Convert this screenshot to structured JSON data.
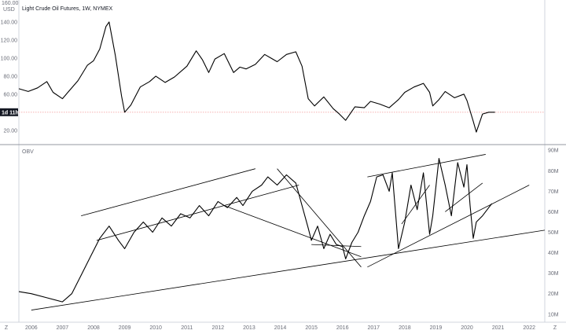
{
  "header": {
    "title": "Light Crude Oil Futures, 1W, NYMEX"
  },
  "price_axis": {
    "top_label": "160.00",
    "currency": "USD"
  },
  "price_tag": {
    "label": "1d 11h"
  },
  "obv_pane": {
    "label": "OBV"
  },
  "corner_icons": {
    "left": "Z",
    "right": "Z"
  },
  "colors": {
    "line": "#000000",
    "axis": "#7b7e8a",
    "ref_line": "#f4a6a6",
    "tag_bg": "#131722"
  },
  "chart_data": [
    {
      "type": "line",
      "title": "Light Crude Oil Futures, 1W, NYMEX",
      "ylim": [
        5,
        160
      ],
      "y_ticks": [
        20,
        40,
        60,
        80,
        100,
        120,
        140
      ],
      "y_tick_labels": [
        "20.00",
        "40.00",
        "60.00",
        "80.00",
        "100.00",
        "120.00",
        "140.00"
      ],
      "ref_line": 40,
      "x": [
        2005.6,
        2005.9,
        2006.2,
        2006.5,
        2006.7,
        2007.0,
        2007.2,
        2007.5,
        2007.8,
        2008.0,
        2008.2,
        2008.4,
        2008.5,
        2008.7,
        2008.9,
        2009.0,
        2009.2,
        2009.5,
        2009.8,
        2010.0,
        2010.3,
        2010.6,
        2010.9,
        2011.0,
        2011.3,
        2011.5,
        2011.7,
        2011.9,
        2012.2,
        2012.5,
        2012.7,
        2012.9,
        2013.2,
        2013.5,
        2013.7,
        2013.9,
        2014.2,
        2014.5,
        2014.7,
        2014.9,
        2015.1,
        2015.4,
        2015.7,
        2015.9,
        2016.1,
        2016.4,
        2016.7,
        2016.9,
        2017.2,
        2017.5,
        2017.8,
        2018.0,
        2018.3,
        2018.6,
        2018.8,
        2018.9,
        2019.1,
        2019.3,
        2019.6,
        2019.9,
        2020.0,
        2020.2,
        2020.3,
        2020.5,
        2020.7,
        2020.9
      ],
      "series": [
        {
          "values": [
            66,
            63,
            67,
            74,
            62,
            55,
            63,
            75,
            92,
            97,
            110,
            135,
            140,
            103,
            58,
            40,
            48,
            68,
            74,
            80,
            73,
            79,
            88,
            91,
            108,
            98,
            84,
            99,
            105,
            84,
            90,
            88,
            93,
            104,
            100,
            96,
            104,
            107,
            91,
            55,
            47,
            57,
            44,
            38,
            31,
            46,
            45,
            52,
            49,
            45,
            54,
            62,
            68,
            72,
            62,
            47,
            54,
            63,
            56,
            60,
            53,
            30,
            18,
            38,
            40,
            40
          ]
        }
      ]
    },
    {
      "type": "line",
      "title": "OBV",
      "ylim": [
        8,
        92
      ],
      "y_ticks": [
        10,
        20,
        30,
        40,
        50,
        60,
        70,
        80,
        90
      ],
      "y_tick_labels": [
        "10M",
        "20M",
        "30M",
        "40M",
        "50M",
        "60M",
        "70M",
        "80M",
        "90M"
      ],
      "x_ticks": [
        2006,
        2007,
        2008,
        2009,
        2010,
        2011,
        2012,
        2013,
        2014,
        2015,
        2016,
        2017,
        2018,
        2019,
        2020,
        2021,
        2022
      ],
      "x_tick_labels": [
        "2006",
        "2007",
        "2008",
        "2009",
        "2010",
        "2011",
        "2012",
        "2013",
        "2014",
        "2015",
        "2016",
        "2017",
        "2018",
        "2019",
        "2020",
        "2021",
        "2022"
      ],
      "x": [
        2005.6,
        2006.0,
        2006.5,
        2007.0,
        2007.3,
        2007.6,
        2007.9,
        2008.2,
        2008.5,
        2008.8,
        2009.0,
        2009.3,
        2009.6,
        2009.9,
        2010.2,
        2010.5,
        2010.8,
        2011.1,
        2011.4,
        2011.7,
        2012.0,
        2012.3,
        2012.6,
        2012.8,
        2013.1,
        2013.4,
        2013.6,
        2013.9,
        2014.2,
        2014.5,
        2014.7,
        2014.9,
        2015.0,
        2015.2,
        2015.4,
        2015.6,
        2015.8,
        2016.0,
        2016.1,
        2016.3,
        2016.5,
        2016.7,
        2016.9,
        2017.1,
        2017.3,
        2017.5,
        2017.6,
        2017.8,
        2018.0,
        2018.2,
        2018.4,
        2018.6,
        2018.8,
        2018.9,
        2019.1,
        2019.3,
        2019.5,
        2019.7,
        2019.9,
        2020.0,
        2020.1,
        2020.2,
        2020.3,
        2020.5,
        2020.7,
        2020.8
      ],
      "series": [
        {
          "values": [
            21,
            20,
            18,
            16,
            20,
            29,
            38,
            47,
            53,
            46,
            42,
            50,
            55,
            50,
            57,
            53,
            59,
            57,
            63,
            58,
            65,
            62,
            67,
            63,
            70,
            73,
            77,
            73,
            78,
            74,
            63,
            52,
            46,
            53,
            42,
            49,
            44,
            43,
            37,
            45,
            50,
            58,
            65,
            77,
            78,
            70,
            79,
            42,
            55,
            73,
            61,
            79,
            49,
            58,
            86,
            73,
            58,
            84,
            72,
            83,
            63,
            47,
            55,
            58,
            62,
            64
          ]
        }
      ]
    }
  ]
}
